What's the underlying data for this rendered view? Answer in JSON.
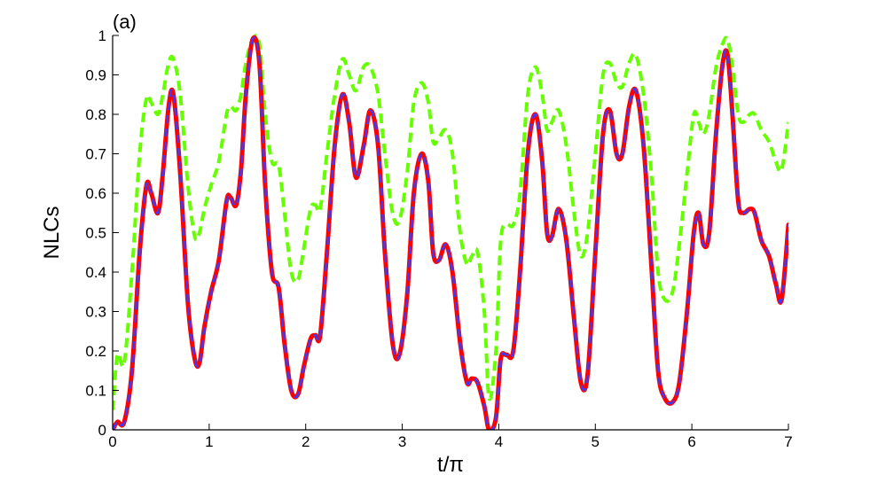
{
  "chart_data": {
    "type": "line",
    "panel_label": "(a)",
    "title": "",
    "xlabel": "t/π",
    "ylabel": "NLCs",
    "xlim": [
      0,
      7
    ],
    "ylim": [
      0,
      1
    ],
    "x_ticks": [
      0,
      1,
      2,
      3,
      4,
      5,
      6,
      7
    ],
    "x_tick_labels": [
      "0",
      "1",
      "2",
      "3",
      "4",
      "5",
      "6",
      "7"
    ],
    "y_ticks": [
      0,
      0.1,
      0.2,
      0.3,
      0.4,
      0.5,
      0.6,
      0.7,
      0.8,
      0.9,
      1
    ],
    "y_tick_labels": [
      "0",
      "0.1",
      "0.2",
      "0.3",
      "0.4",
      "0.5",
      "0.6",
      "0.7",
      "0.8",
      "0.9",
      "1"
    ],
    "grid": false,
    "legend": "none",
    "series": [
      {
        "color": "#ff0000",
        "line_style": "solid",
        "x": [
          0,
          0.05,
          0.12,
          0.2,
          0.28,
          0.35,
          0.4,
          0.47,
          0.52,
          0.58,
          0.63,
          0.7,
          0.78,
          0.85,
          0.9,
          0.95,
          1.02,
          1.1,
          1.18,
          1.22,
          1.28,
          1.33,
          1.38,
          1.45,
          1.52,
          1.58,
          1.65,
          1.72,
          1.78,
          1.85,
          1.92,
          1.98,
          2.05,
          2.1,
          2.15,
          2.22,
          2.3,
          2.38,
          2.45,
          2.52,
          2.6,
          2.67,
          2.75,
          2.82,
          2.9,
          2.97,
          3.05,
          3.12,
          3.2,
          3.27,
          3.32,
          3.38,
          3.45,
          3.52,
          3.6,
          3.67,
          3.72,
          3.78,
          3.85,
          3.9,
          3.97,
          4.02,
          4.08,
          4.15,
          4.22,
          4.3,
          4.38,
          4.45,
          4.5,
          4.55,
          4.62,
          4.7,
          4.78,
          4.85,
          4.92,
          5.0,
          5.08,
          5.15,
          5.22,
          5.28,
          5.35,
          5.42,
          5.5,
          5.58,
          5.65,
          5.72,
          5.8,
          5.87,
          5.95,
          6.02,
          6.07,
          6.12,
          6.18,
          6.25,
          6.32,
          6.37,
          6.42,
          6.48,
          6.53,
          6.6,
          6.65,
          6.72,
          6.8,
          6.87,
          6.93,
          7.0
        ],
        "y": [
          0.0,
          0.02,
          0.02,
          0.15,
          0.45,
          0.62,
          0.6,
          0.55,
          0.65,
          0.82,
          0.85,
          0.65,
          0.32,
          0.18,
          0.17,
          0.26,
          0.35,
          0.43,
          0.58,
          0.59,
          0.57,
          0.66,
          0.85,
          0.99,
          0.93,
          0.62,
          0.4,
          0.36,
          0.22,
          0.1,
          0.09,
          0.16,
          0.23,
          0.24,
          0.24,
          0.45,
          0.72,
          0.85,
          0.78,
          0.64,
          0.72,
          0.81,
          0.72,
          0.45,
          0.22,
          0.19,
          0.34,
          0.6,
          0.7,
          0.63,
          0.45,
          0.43,
          0.47,
          0.4,
          0.22,
          0.12,
          0.13,
          0.12,
          0.06,
          0.0,
          0.03,
          0.18,
          0.19,
          0.2,
          0.4,
          0.7,
          0.8,
          0.68,
          0.5,
          0.49,
          0.56,
          0.48,
          0.28,
          0.12,
          0.14,
          0.45,
          0.75,
          0.81,
          0.7,
          0.7,
          0.82,
          0.86,
          0.72,
          0.42,
          0.15,
          0.08,
          0.07,
          0.12,
          0.3,
          0.5,
          0.55,
          0.47,
          0.5,
          0.75,
          0.93,
          0.95,
          0.8,
          0.58,
          0.55,
          0.56,
          0.55,
          0.48,
          0.44,
          0.37,
          0.33,
          0.52
        ]
      },
      {
        "color": "#3b3bff",
        "line_style": "dashed",
        "x": [
          0,
          0.05,
          0.12,
          0.2,
          0.28,
          0.35,
          0.4,
          0.47,
          0.52,
          0.58,
          0.63,
          0.7,
          0.78,
          0.85,
          0.9,
          0.95,
          1.02,
          1.1,
          1.18,
          1.22,
          1.28,
          1.33,
          1.38,
          1.45,
          1.52,
          1.58,
          1.65,
          1.72,
          1.78,
          1.85,
          1.92,
          1.98,
          2.05,
          2.1,
          2.15,
          2.22,
          2.3,
          2.38,
          2.45,
          2.52,
          2.6,
          2.67,
          2.75,
          2.82,
          2.9,
          2.97,
          3.05,
          3.12,
          3.2,
          3.27,
          3.32,
          3.38,
          3.45,
          3.52,
          3.6,
          3.67,
          3.72,
          3.78,
          3.85,
          3.9,
          3.97,
          4.02,
          4.08,
          4.15,
          4.22,
          4.3,
          4.38,
          4.45,
          4.5,
          4.55,
          4.62,
          4.7,
          4.78,
          4.85,
          4.92,
          5.0,
          5.08,
          5.15,
          5.22,
          5.28,
          5.35,
          5.42,
          5.5,
          5.58,
          5.65,
          5.72,
          5.8,
          5.87,
          5.95,
          6.02,
          6.07,
          6.12,
          6.18,
          6.25,
          6.32,
          6.37,
          6.42,
          6.48,
          6.53,
          6.6,
          6.65,
          6.72,
          6.8,
          6.87,
          6.93,
          7.0
        ],
        "y": [
          0.0,
          0.02,
          0.02,
          0.15,
          0.45,
          0.62,
          0.6,
          0.55,
          0.65,
          0.82,
          0.85,
          0.65,
          0.32,
          0.18,
          0.17,
          0.26,
          0.35,
          0.43,
          0.58,
          0.59,
          0.57,
          0.66,
          0.85,
          0.99,
          0.93,
          0.62,
          0.4,
          0.36,
          0.22,
          0.1,
          0.09,
          0.16,
          0.23,
          0.24,
          0.24,
          0.45,
          0.72,
          0.85,
          0.78,
          0.64,
          0.72,
          0.81,
          0.72,
          0.45,
          0.22,
          0.19,
          0.34,
          0.6,
          0.7,
          0.63,
          0.45,
          0.43,
          0.47,
          0.4,
          0.22,
          0.12,
          0.13,
          0.12,
          0.06,
          0.0,
          0.03,
          0.18,
          0.19,
          0.2,
          0.4,
          0.7,
          0.8,
          0.68,
          0.5,
          0.49,
          0.56,
          0.48,
          0.28,
          0.12,
          0.14,
          0.45,
          0.75,
          0.81,
          0.7,
          0.7,
          0.82,
          0.86,
          0.72,
          0.42,
          0.15,
          0.08,
          0.07,
          0.12,
          0.3,
          0.5,
          0.55,
          0.47,
          0.5,
          0.75,
          0.93,
          0.95,
          0.8,
          0.58,
          0.55,
          0.56,
          0.55,
          0.48,
          0.44,
          0.37,
          0.33,
          0.52
        ]
      },
      {
        "color": "#66ff00",
        "line_style": "dashed",
        "x": [
          0,
          0.05,
          0.12,
          0.2,
          0.28,
          0.35,
          0.4,
          0.47,
          0.52,
          0.58,
          0.63,
          0.7,
          0.78,
          0.85,
          0.9,
          0.95,
          1.02,
          1.1,
          1.18,
          1.22,
          1.28,
          1.33,
          1.38,
          1.45,
          1.52,
          1.58,
          1.65,
          1.72,
          1.78,
          1.85,
          1.92,
          1.98,
          2.05,
          2.1,
          2.15,
          2.22,
          2.3,
          2.38,
          2.45,
          2.52,
          2.6,
          2.67,
          2.75,
          2.82,
          2.9,
          2.97,
          3.05,
          3.12,
          3.2,
          3.27,
          3.32,
          3.38,
          3.45,
          3.52,
          3.6,
          3.67,
          3.72,
          3.78,
          3.85,
          3.9,
          3.97,
          4.02,
          4.08,
          4.15,
          4.22,
          4.3,
          4.38,
          4.45,
          4.5,
          4.55,
          4.62,
          4.7,
          4.78,
          4.85,
          4.92,
          5.0,
          5.08,
          5.15,
          5.22,
          5.28,
          5.35,
          5.42,
          5.5,
          5.58,
          5.65,
          5.72,
          5.8,
          5.87,
          5.95,
          6.02,
          6.07,
          6.12,
          6.18,
          6.25,
          6.32,
          6.37,
          6.42,
          6.48,
          6.53,
          6.6,
          6.65,
          6.72,
          6.8,
          6.87,
          6.93,
          7.0
        ],
        "y": [
          0.05,
          0.19,
          0.17,
          0.4,
          0.7,
          0.84,
          0.83,
          0.8,
          0.85,
          0.93,
          0.94,
          0.85,
          0.62,
          0.49,
          0.5,
          0.56,
          0.62,
          0.68,
          0.8,
          0.82,
          0.81,
          0.85,
          0.93,
          0.99,
          0.98,
          0.8,
          0.68,
          0.67,
          0.55,
          0.4,
          0.38,
          0.46,
          0.56,
          0.57,
          0.56,
          0.7,
          0.85,
          0.94,
          0.9,
          0.86,
          0.92,
          0.92,
          0.85,
          0.7,
          0.55,
          0.53,
          0.65,
          0.83,
          0.88,
          0.83,
          0.73,
          0.74,
          0.76,
          0.7,
          0.5,
          0.42,
          0.44,
          0.45,
          0.3,
          0.08,
          0.2,
          0.48,
          0.52,
          0.52,
          0.6,
          0.85,
          0.92,
          0.85,
          0.76,
          0.78,
          0.81,
          0.72,
          0.55,
          0.44,
          0.5,
          0.7,
          0.9,
          0.93,
          0.88,
          0.87,
          0.93,
          0.95,
          0.85,
          0.65,
          0.4,
          0.33,
          0.35,
          0.47,
          0.65,
          0.8,
          0.78,
          0.75,
          0.8,
          0.92,
          0.98,
          0.99,
          0.92,
          0.8,
          0.78,
          0.8,
          0.8,
          0.76,
          0.73,
          0.68,
          0.66,
          0.78
        ]
      }
    ]
  }
}
